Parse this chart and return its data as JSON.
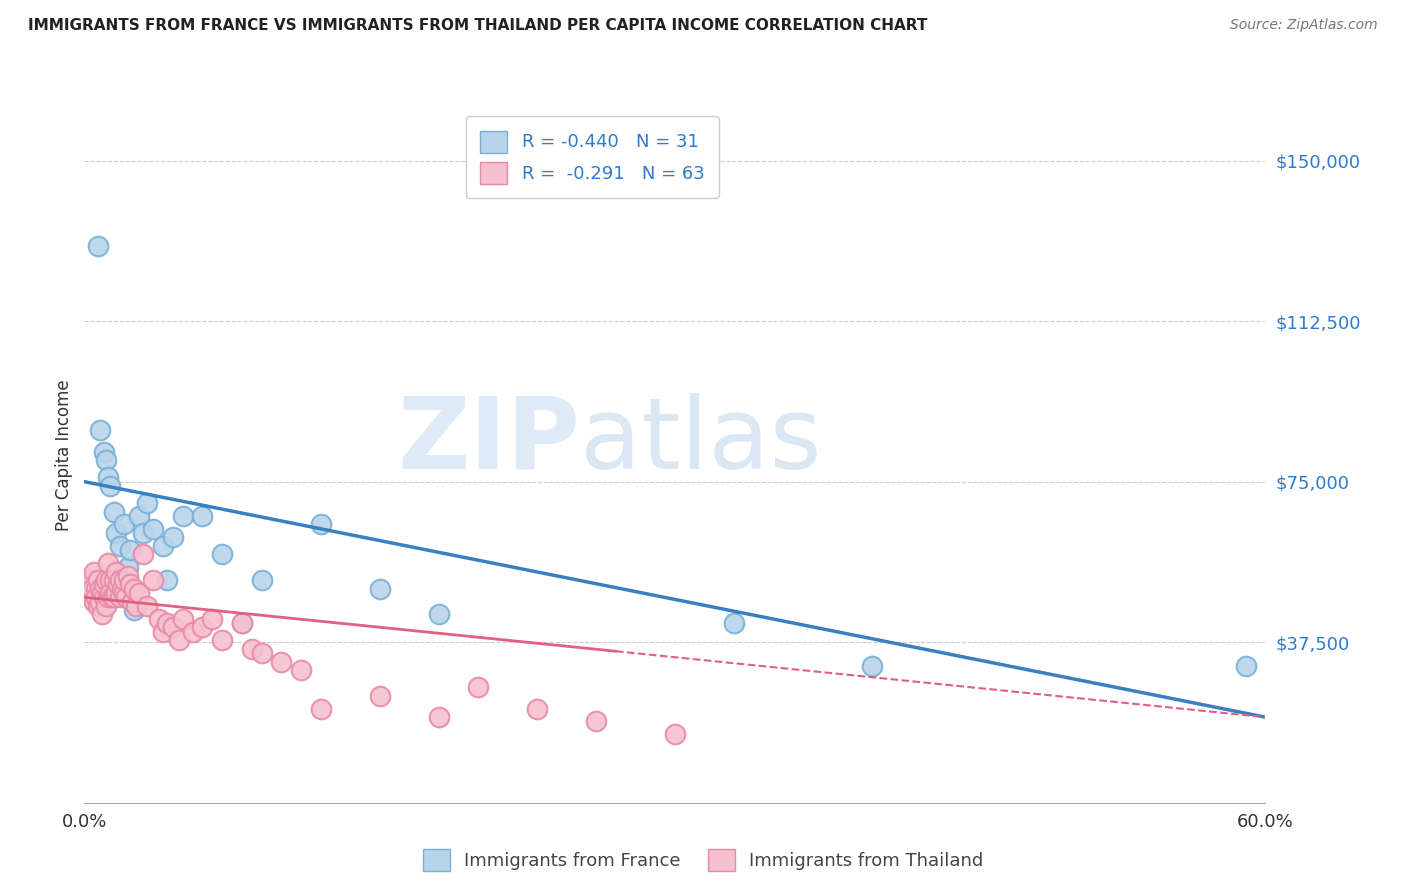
{
  "title": "IMMIGRANTS FROM FRANCE VS IMMIGRANTS FROM THAILAND PER CAPITA INCOME CORRELATION CHART",
  "source": "Source: ZipAtlas.com",
  "ylabel": "Per Capita Income",
  "xlim": [
    0.0,
    0.6
  ],
  "ylim": [
    0,
    162500
  ],
  "yticks": [
    0,
    37500,
    75000,
    112500,
    150000
  ],
  "ytick_labels": [
    "",
    "$37,500",
    "$75,000",
    "$112,500",
    "$150,000"
  ],
  "xticks": [
    0.0,
    0.1,
    0.2,
    0.3,
    0.4,
    0.5,
    0.6
  ],
  "xtick_labels": [
    "0.0%",
    "",
    "",
    "",
    "",
    "",
    "60.0%"
  ],
  "france_color": "#b8d4ea",
  "france_edge": "#7ab0d8",
  "thailand_color": "#f5c0cf",
  "thailand_edge": "#e88aa8",
  "france_line_color": "#3a7fc1",
  "thailand_line_color": "#e06080",
  "france_R": -0.44,
  "france_N": 31,
  "thailand_R": -0.291,
  "thailand_N": 63,
  "background_color": "#ffffff",
  "grid_color": "#cccccc",
  "watermark_zip": "ZIP",
  "watermark_atlas": "atlas",
  "france_x": [
    0.007,
    0.008,
    0.01,
    0.011,
    0.012,
    0.013,
    0.015,
    0.016,
    0.018,
    0.02,
    0.022,
    0.023,
    0.025,
    0.028,
    0.03,
    0.032,
    0.035,
    0.04,
    0.042,
    0.045,
    0.05,
    0.06,
    0.07,
    0.08,
    0.09,
    0.12,
    0.15,
    0.18,
    0.33,
    0.4,
    0.59
  ],
  "france_y": [
    130000,
    87000,
    82000,
    80000,
    76000,
    74000,
    68000,
    63000,
    60000,
    65000,
    55000,
    59000,
    45000,
    67000,
    63000,
    70000,
    64000,
    60000,
    52000,
    62000,
    67000,
    67000,
    58000,
    42000,
    52000,
    65000,
    50000,
    44000,
    42000,
    32000,
    32000
  ],
  "thailand_x": [
    0.003,
    0.004,
    0.005,
    0.005,
    0.006,
    0.006,
    0.007,
    0.007,
    0.008,
    0.008,
    0.009,
    0.009,
    0.01,
    0.01,
    0.011,
    0.011,
    0.012,
    0.012,
    0.013,
    0.013,
    0.014,
    0.015,
    0.015,
    0.016,
    0.016,
    0.017,
    0.018,
    0.018,
    0.019,
    0.02,
    0.02,
    0.021,
    0.022,
    0.023,
    0.024,
    0.025,
    0.026,
    0.028,
    0.03,
    0.032,
    0.035,
    0.038,
    0.04,
    0.042,
    0.045,
    0.048,
    0.05,
    0.055,
    0.06,
    0.065,
    0.07,
    0.08,
    0.085,
    0.09,
    0.1,
    0.11,
    0.12,
    0.15,
    0.18,
    0.2,
    0.23,
    0.26,
    0.3
  ],
  "thailand_y": [
    52000,
    50000,
    54000,
    47000,
    50000,
    48000,
    46000,
    52000,
    50000,
    47000,
    49000,
    44000,
    48000,
    51000,
    52000,
    46000,
    56000,
    48000,
    52000,
    49000,
    48000,
    52000,
    48000,
    54000,
    49000,
    51000,
    52000,
    48000,
    50000,
    49000,
    52000,
    48000,
    53000,
    51000,
    47000,
    50000,
    46000,
    49000,
    58000,
    46000,
    52000,
    43000,
    40000,
    42000,
    41000,
    38000,
    43000,
    40000,
    41000,
    43000,
    38000,
    42000,
    36000,
    35000,
    33000,
    31000,
    22000,
    25000,
    20000,
    27000,
    22000,
    19000,
    16000
  ]
}
